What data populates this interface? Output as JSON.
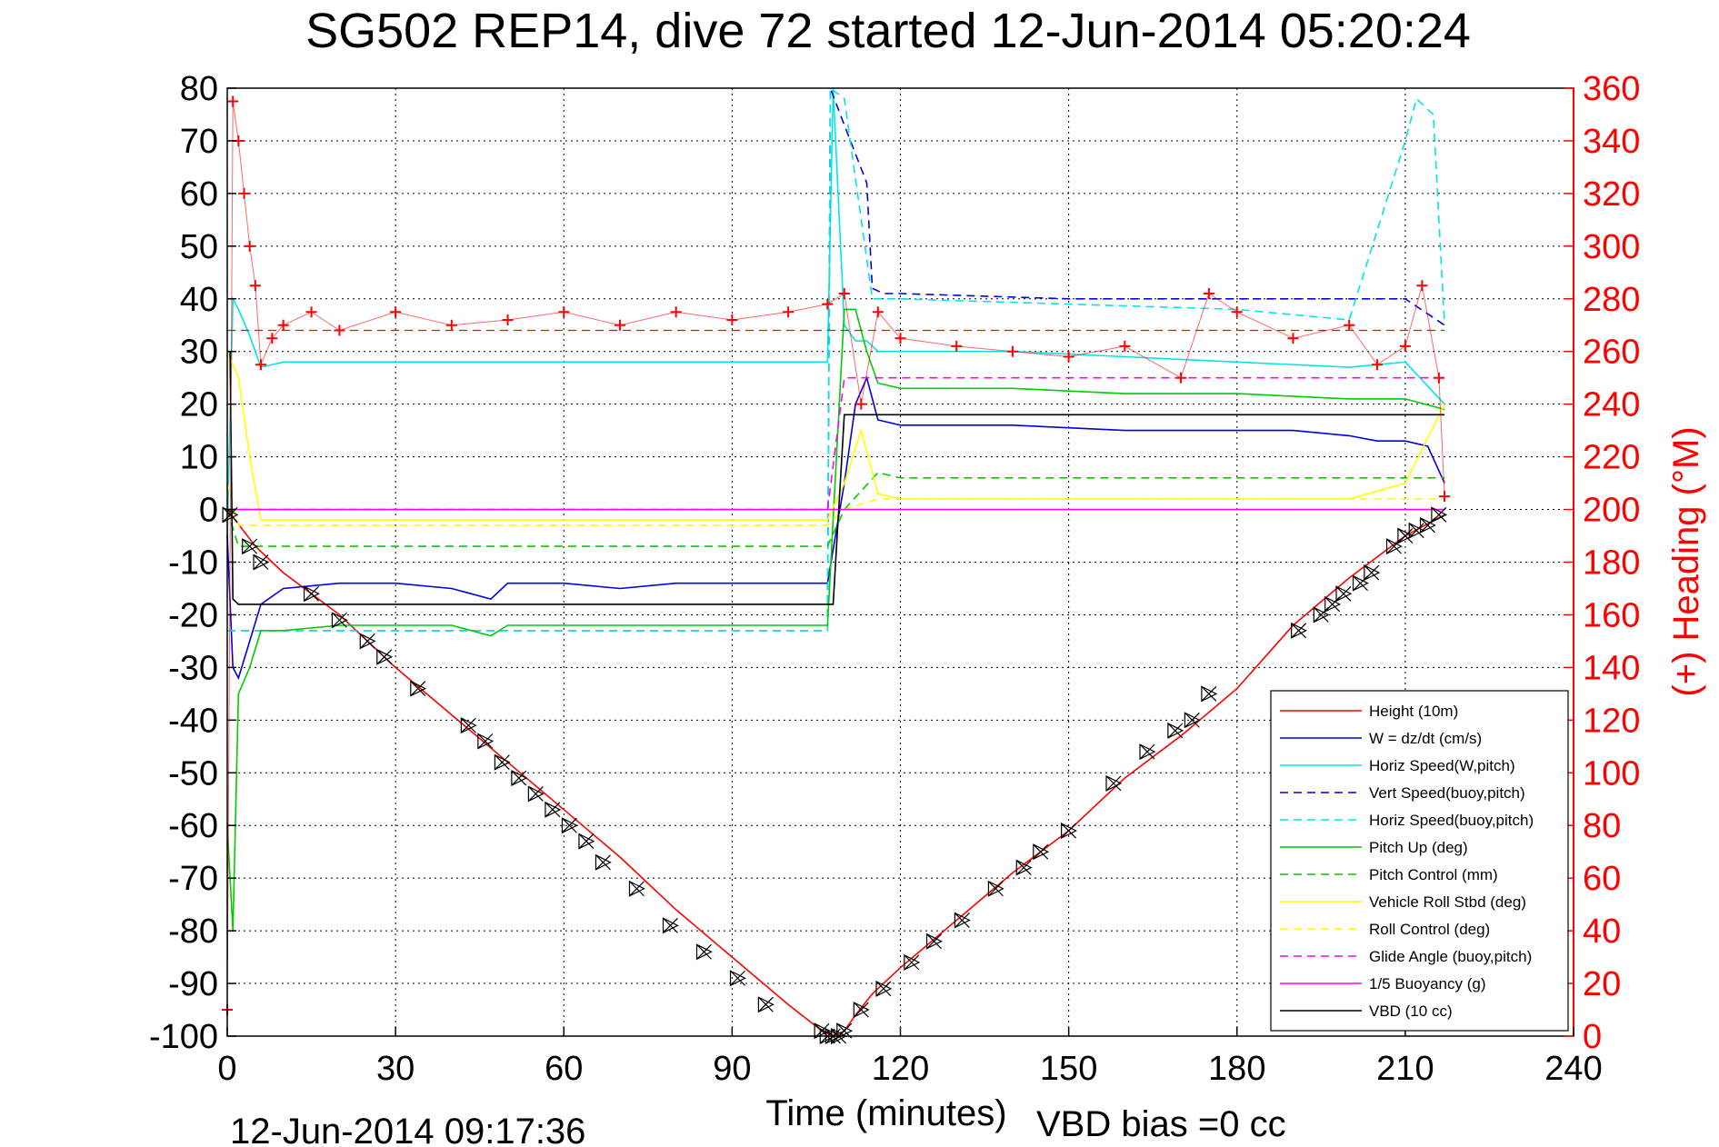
{
  "chart_data": {
    "type": "line",
    "title": "SG502 REP14, dive 72 started 12-Jun-2014 05:20:24",
    "xlabel": "Time (minutes)",
    "ylabel_right": "(+) Heading (°M)",
    "footer_left": "12-Jun-2014 09:17:36",
    "footer_right": "VBD bias =0 cc",
    "xlim": [
      0,
      240
    ],
    "ylim": [
      -100,
      80
    ],
    "ylim_right": [
      0,
      360
    ],
    "x_ticks": [
      "0",
      "30",
      "60",
      "90",
      "120",
      "150",
      "180",
      "210",
      "240"
    ],
    "y_ticks": [
      "80",
      "70",
      "60",
      "50",
      "40",
      "30",
      "20",
      "10",
      "0",
      "-10",
      "-20",
      "-30",
      "-40",
      "-50",
      "-60",
      "-70",
      "-80",
      "-90",
      "-100"
    ],
    "y_ticks_right": [
      "360",
      "340",
      "320",
      "300",
      "280",
      "260",
      "240",
      "220",
      "200",
      "180",
      "160",
      "140",
      "120",
      "100",
      "80",
      "60",
      "40",
      "20",
      "0"
    ],
    "grid": true,
    "legend_position": "bottom-right",
    "series": [
      {
        "name": "Height (10m)",
        "color": "#ff0000",
        "dash": "solid",
        "x": [
          0,
          5,
          10,
          20,
          30,
          40,
          50,
          60,
          70,
          80,
          90,
          100,
          106,
          108,
          110,
          112,
          115,
          120,
          130,
          140,
          150,
          160,
          170,
          180,
          190,
          200,
          210,
          217
        ],
        "y": [
          0,
          -7,
          -12,
          -20,
          -30,
          -39,
          -48,
          -57,
          -66,
          -76,
          -85,
          -94,
          -99,
          -100,
          -99,
          -96,
          -92,
          -87,
          -78,
          -69,
          -61,
          -51,
          -43,
          -34,
          -22,
          -13,
          -5,
          -1
        ]
      },
      {
        "name": "W = dz/dt (cm/s)",
        "color": "#0000e0",
        "dash": "solid",
        "x": [
          0,
          1,
          2,
          4,
          6,
          10,
          20,
          30,
          40,
          47,
          50,
          60,
          70,
          80,
          90,
          100,
          107,
          110,
          112,
          114,
          116,
          120,
          140,
          160,
          180,
          190,
          200,
          205,
          210,
          214,
          217
        ],
        "y": [
          -5,
          -30,
          -32,
          -25,
          -18,
          -15,
          -14,
          -14,
          -15,
          -17,
          -14,
          -14,
          -15,
          -14,
          -14,
          -14,
          -14,
          5,
          20,
          25,
          17,
          16,
          16,
          15,
          15,
          15,
          14,
          13,
          13,
          12,
          5
        ]
      },
      {
        "name": "Horiz Speed(W,pitch)",
        "color": "#00e6e6",
        "dash": "solid",
        "x": [
          0,
          1,
          2,
          4,
          6,
          10,
          20,
          30,
          40,
          50,
          60,
          70,
          80,
          90,
          100,
          107,
          108,
          110,
          112,
          114,
          116,
          120,
          140,
          160,
          180,
          200,
          210,
          217
        ],
        "y": [
          -5,
          40,
          38,
          33,
          27,
          28,
          28,
          28,
          28,
          28,
          28,
          28,
          28,
          28,
          28,
          28,
          80,
          35,
          32,
          32,
          30,
          30,
          30,
          29,
          28,
          27,
          28,
          20
        ]
      },
      {
        "name": "Vert Speed(buoy,pitch)",
        "color": "#0000e0",
        "dash": "dash",
        "x": [
          0,
          107,
          107.5,
          110,
          114,
          115,
          117,
          120,
          150,
          180,
          190,
          200,
          210,
          217
        ],
        "y": [
          -23,
          -23,
          80,
          73,
          62,
          42,
          41,
          41,
          40,
          40,
          40,
          40,
          40,
          35
        ]
      },
      {
        "name": "Horiz Speed(buoy,pitch)",
        "color": "#00e6e6",
        "dash": "dash",
        "x": [
          0,
          107,
          107.5,
          110,
          115,
          120,
          150,
          180,
          200,
          210,
          212,
          215,
          217
        ],
        "y": [
          -23,
          -23,
          80,
          78,
          40,
          40,
          39,
          38,
          36,
          70,
          78,
          75,
          35
        ]
      },
      {
        "name": "Pitch Up (deg)",
        "color": "#00cc00",
        "dash": "solid",
        "x": [
          0,
          1,
          2,
          4,
          6,
          10,
          20,
          30,
          40,
          47,
          50,
          60,
          70,
          80,
          90,
          100,
          107,
          110,
          112,
          114,
          116,
          120,
          140,
          160,
          180,
          200,
          210,
          217
        ],
        "y": [
          -60,
          -80,
          -35,
          -30,
          -23,
          -23,
          -22,
          -22,
          -22,
          -24,
          -22,
          -22,
          -22,
          -22,
          -22,
          -22,
          -22,
          38,
          38,
          30,
          24,
          23,
          23,
          22,
          22,
          21,
          21,
          19
        ]
      },
      {
        "name": "Pitch Control (mm)",
        "color": "#00cc00",
        "dash": "dash",
        "x": [
          0,
          2,
          5,
          107,
          110,
          116,
          120,
          217
        ],
        "y": [
          0,
          -7,
          -7,
          -7,
          0,
          7,
          6,
          6
        ]
      },
      {
        "name": "Vehicle Roll Stbd (deg)",
        "color": "#ffff00",
        "dash": "solid",
        "x": [
          0,
          2,
          4,
          6,
          10,
          30,
          60,
          90,
          107,
          110,
          113,
          116,
          120,
          150,
          180,
          200,
          210,
          217
        ],
        "y": [
          30,
          25,
          10,
          -2,
          -2,
          -2,
          -2,
          -2,
          -2,
          5,
          15,
          3,
          2,
          2,
          2,
          2,
          5,
          20
        ]
      },
      {
        "name": "Roll Control (deg)",
        "color": "#ffff00",
        "dash": "dash",
        "x": [
          0,
          2,
          5,
          10,
          50,
          107,
          110,
          116,
          120,
          217
        ],
        "y": [
          5,
          -3,
          -3,
          -3,
          -3,
          -3,
          0,
          2,
          2,
          2
        ]
      },
      {
        "name": "Glide Angle (buoy,pitch)",
        "color": "#ff00ff",
        "dash": "dash",
        "x": [
          0,
          107,
          110,
          116,
          120,
          217
        ],
        "y": [
          0,
          0,
          25,
          25,
          25,
          25
        ]
      },
      {
        "name": "1/5 Buoyancy (g)",
        "color": "#ff00ff",
        "dash": "solid",
        "x": [
          0,
          217
        ],
        "y": [
          0,
          0
        ]
      },
      {
        "name": "VBD (10 cc)",
        "color": "#000000",
        "dash": "solid",
        "x": [
          0,
          0.5,
          1,
          2,
          107,
          108,
          110,
          114,
          116,
          120,
          217
        ],
        "y": [
          30,
          30,
          -17,
          -18,
          -18,
          -18,
          18,
          18,
          18,
          18,
          18
        ]
      }
    ],
    "series_right": [
      {
        "name": "Heading",
        "color": "#ff0000",
        "marker": "+",
        "x": [
          0,
          1,
          2,
          3,
          4,
          5,
          6,
          8,
          10,
          15,
          20,
          30,
          40,
          50,
          60,
          70,
          80,
          90,
          100,
          107,
          110,
          113,
          116,
          120,
          130,
          140,
          150,
          160,
          170,
          175,
          180,
          190,
          200,
          205,
          210,
          213,
          216,
          217
        ],
        "y": [
          10,
          355,
          340,
          320,
          300,
          285,
          255,
          265,
          270,
          275,
          268,
          275,
          270,
          272,
          275,
          270,
          275,
          272,
          275,
          278,
          282,
          240,
          275,
          265,
          262,
          260,
          258,
          262,
          250,
          282,
          275,
          265,
          270,
          255,
          262,
          285,
          250,
          205
        ]
      },
      {
        "name": "",
        "color": "#ff0000",
        "dash": "dash",
        "x": [
          0,
          217
        ],
        "y": [
          268,
          268
        ]
      }
    ],
    "depth_markers": {
      "color": "#000000",
      "x": [
        0.5,
        4,
        6,
        15,
        20,
        25,
        28,
        34,
        43,
        46,
        49,
        52,
        55,
        58,
        61,
        64,
        67,
        73,
        79,
        85,
        91,
        96,
        106,
        107,
        108,
        109,
        110,
        113,
        117,
        122,
        126,
        131,
        137,
        142,
        145,
        150,
        158,
        164,
        169,
        172,
        175,
        191,
        195,
        197,
        199,
        202,
        204,
        208,
        210,
        212,
        214,
        216
      ],
      "y": [
        -1,
        -7,
        -10,
        -16,
        -21,
        -25,
        -28,
        -34,
        -41,
        -44,
        -48,
        -51,
        -54,
        -57,
        -60,
        -63,
        -67,
        -72,
        -79,
        -84,
        -89,
        -94,
        -99,
        -100,
        -100,
        -100,
        -99,
        -95,
        -91,
        -86,
        -82,
        -78,
        -72,
        -68,
        -65,
        -61,
        -52,
        -46,
        -42,
        -40,
        -35,
        -23,
        -20,
        -18,
        -16,
        -14,
        -12,
        -7,
        -5,
        -4,
        -3,
        -1
      ]
    }
  }
}
